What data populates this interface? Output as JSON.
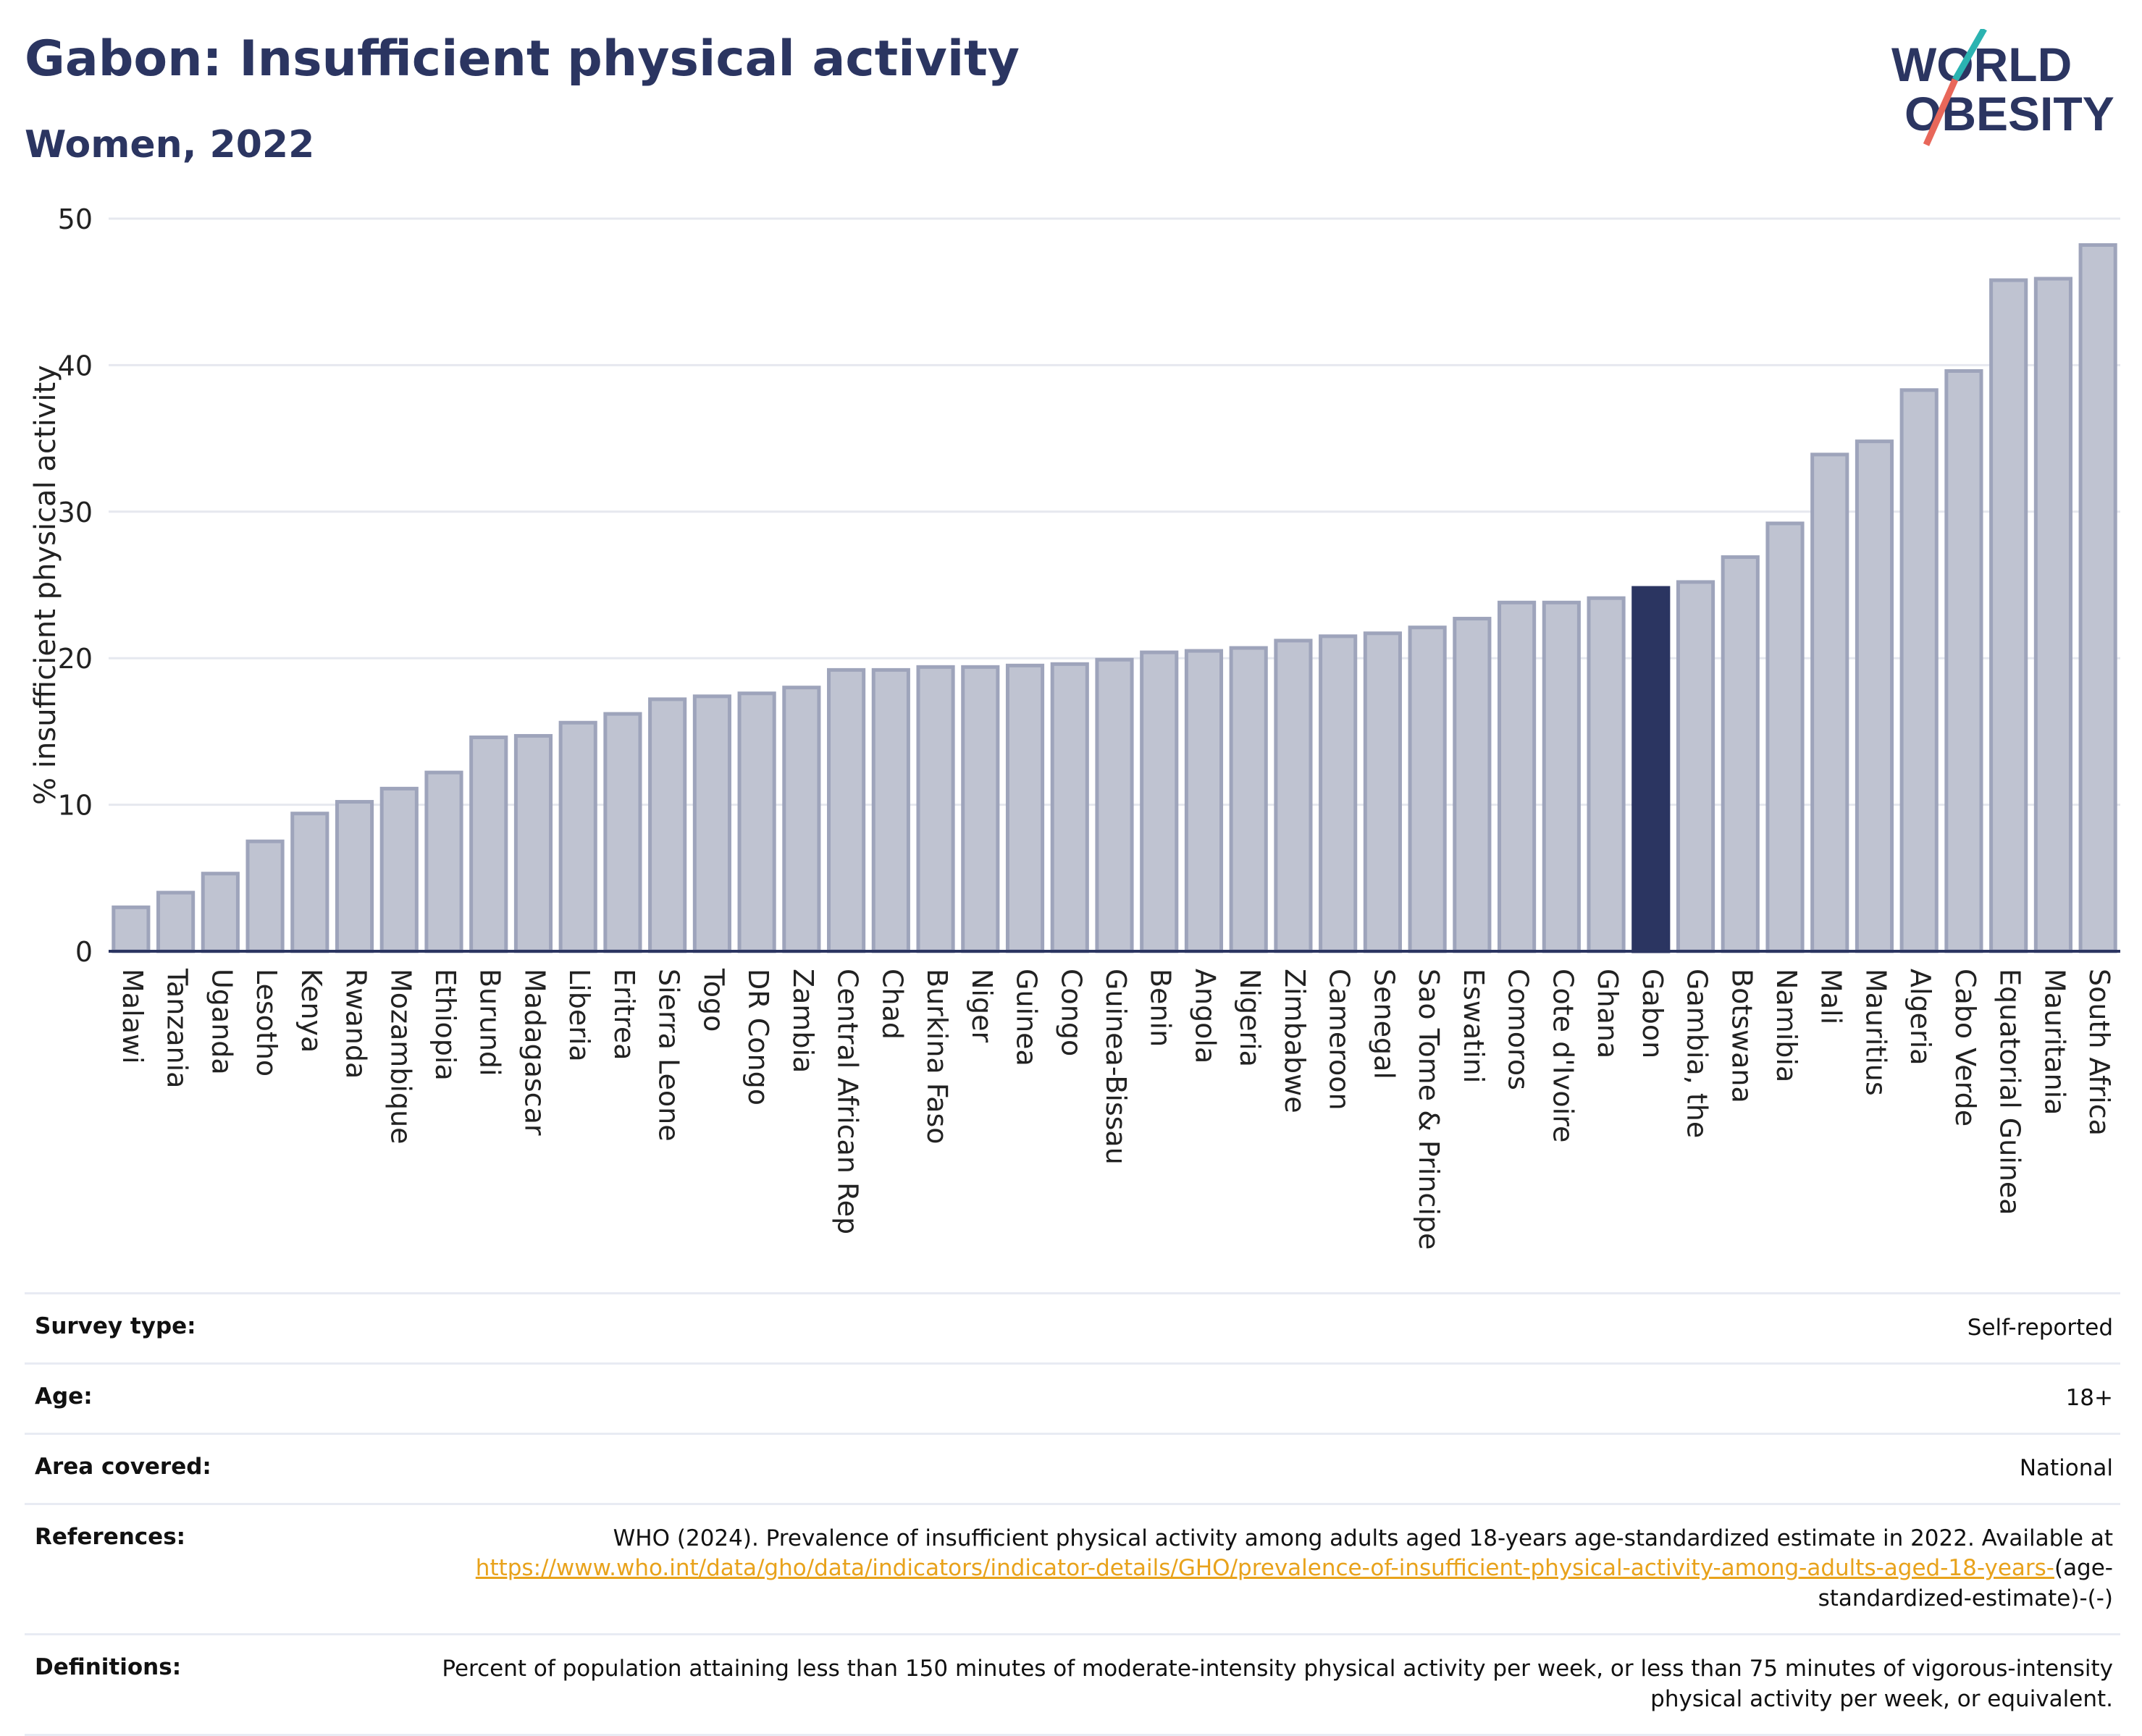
{
  "header": {
    "title": "Gabon: Insufficient physical activity",
    "subtitle": "Women, 2022"
  },
  "logo": {
    "line1": "WORLD",
    "line2": "OBESITY"
  },
  "colors": {
    "highlight": "#2b3561",
    "bar": "#bfc3d1",
    "bar_border": "#9ea4bb",
    "accent_teal": "#2bb3b1",
    "accent_coral": "#e8675a"
  },
  "chart_data": {
    "type": "bar",
    "ylabel": "% insufficient physical activity",
    "ylim": [
      0,
      50
    ],
    "yticks": [
      0,
      10,
      20,
      30,
      40,
      50
    ],
    "grid": true,
    "highlight": "Gabon",
    "categories": [
      "Malawi",
      "Tanzania",
      "Uganda",
      "Lesotho",
      "Kenya",
      "Rwanda",
      "Mozambique",
      "Ethiopia",
      "Burundi",
      "Madagascar",
      "Liberia",
      "Eritrea",
      "Sierra Leone",
      "Togo",
      "DR Congo",
      "Zambia",
      "Central African Rep",
      "Chad",
      "Burkina Faso",
      "Niger",
      "Guinea",
      "Congo",
      "Guinea-Bissau",
      "Benin",
      "Angola",
      "Nigeria",
      "Zimbabwe",
      "Cameroon",
      "Senegal",
      "Sao Tome & Principe",
      "Eswatini",
      "Comoros",
      "Cote d'Ivoire",
      "Ghana",
      "Gabon",
      "Gambia, the",
      "Botswana",
      "Namibia",
      "Mali",
      "Mauritius",
      "Algeria",
      "Cabo Verde",
      "Equatorial Guinea",
      "Mauritania",
      "South Africa"
    ],
    "values": [
      3.0,
      4.0,
      5.3,
      7.5,
      9.4,
      10.2,
      11.1,
      12.2,
      14.6,
      14.7,
      15.6,
      16.2,
      17.2,
      17.4,
      17.6,
      18.0,
      19.2,
      19.2,
      19.4,
      19.4,
      19.5,
      19.6,
      19.9,
      20.4,
      20.5,
      20.7,
      21.2,
      21.5,
      21.7,
      22.1,
      22.7,
      23.8,
      23.8,
      24.1,
      24.8,
      25.2,
      26.9,
      29.2,
      33.9,
      34.8,
      38.3,
      39.6,
      45.8,
      45.9,
      48.2
    ]
  },
  "meta": {
    "survey_type_label": "Survey type:",
    "survey_type_value": "Self-reported",
    "age_label": "Age:",
    "age_value": "18+",
    "area_label": "Area covered:",
    "area_value": "National",
    "references_label": "References:",
    "references_text": "WHO (2024). Prevalence of insufficient physical activity among adults aged 18-years age-standardized estimate in 2022. Available at",
    "references_link": "https://www.who.int/data/gho/data/indicators/indicator-details/GHO/prevalence-of-insufficient-physical-activity-among-adults-aged-18-years-",
    "references_suffix": "(age-standardized-estimate)-(-)",
    "definitions_label": "Definitions:",
    "definitions_text": "Percent of population attaining less than 150 minutes of moderate-intensity physical activity per week, or less than 75 minutes of vigorous-intensity physical activity per week, or equivalent."
  }
}
